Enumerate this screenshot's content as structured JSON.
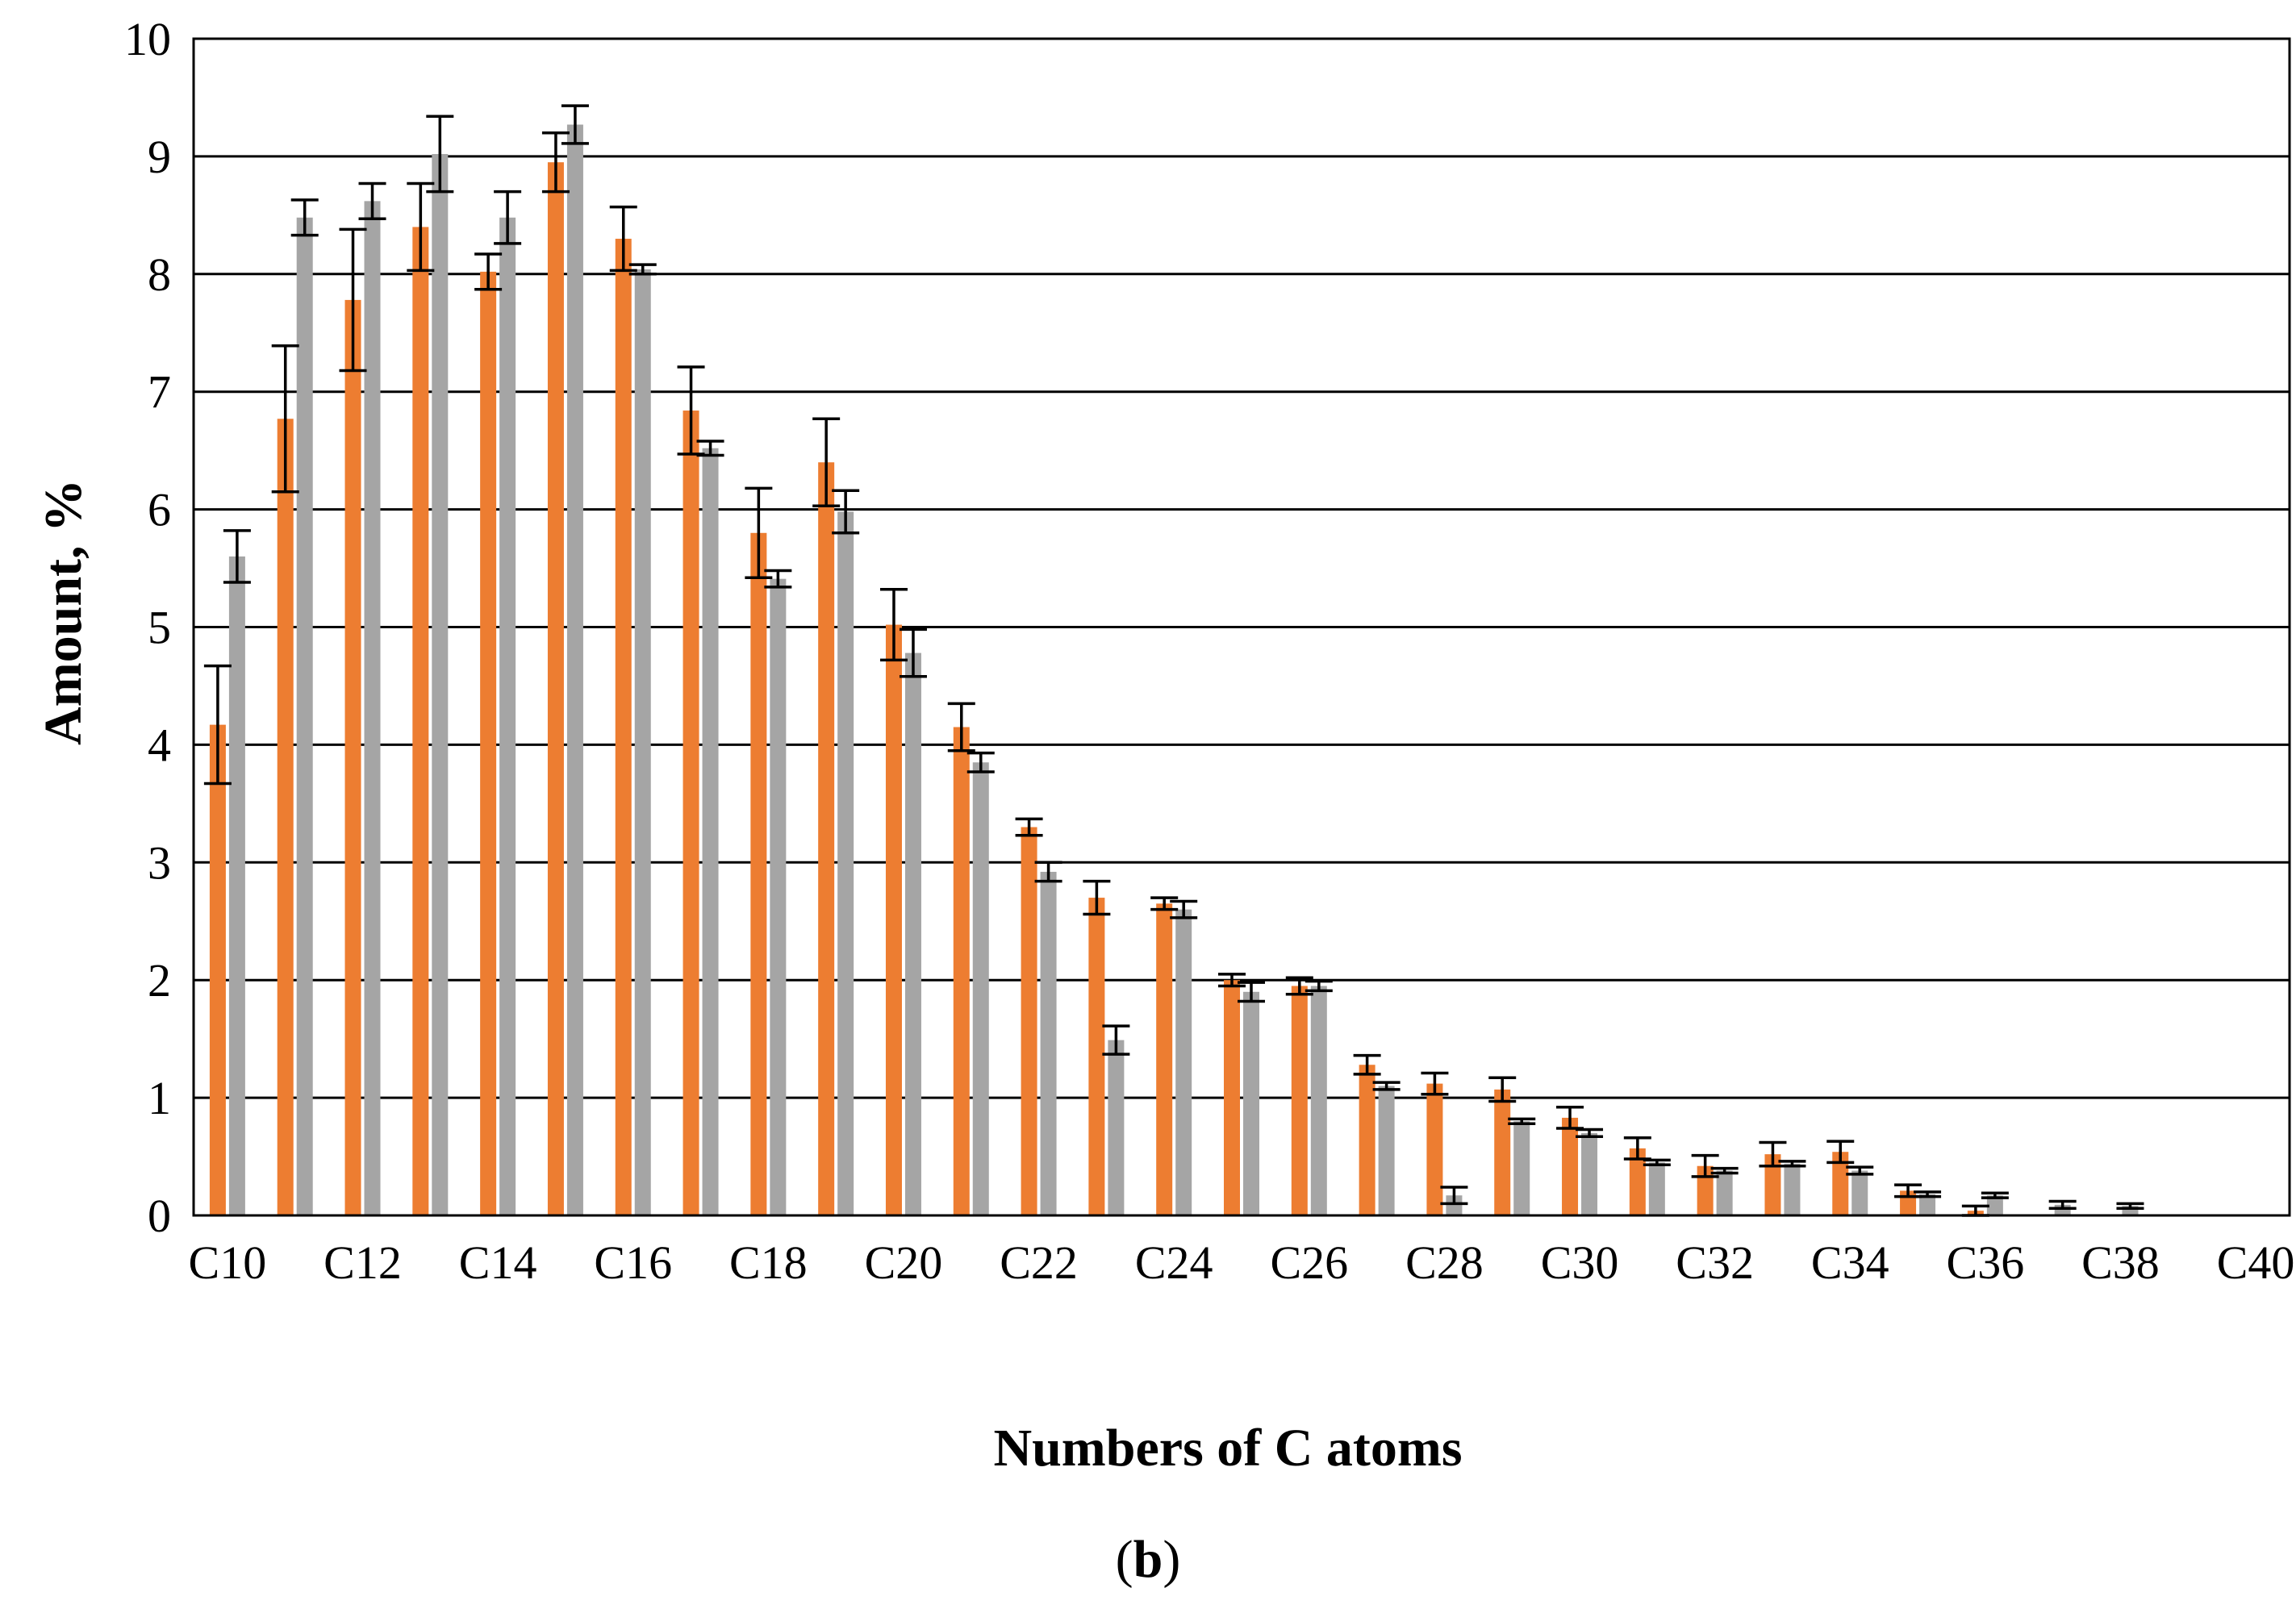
{
  "chart_data": {
    "type": "bar",
    "xlabel": "Numbers of C atoms",
    "ylabel": "Amount, %",
    "panel_label": {
      "open": "(",
      "letter": "b",
      "close": ")"
    },
    "ylim": [
      0,
      10
    ],
    "yticks": [
      "0",
      "1",
      "2",
      "3",
      "4",
      "5",
      "6",
      "7",
      "8",
      "9",
      "10"
    ],
    "grid": true,
    "legend": "none",
    "categories": [
      "C10",
      "C11",
      "C12",
      "C13",
      "C14",
      "C15",
      "C16",
      "C17",
      "C18",
      "C19",
      "C20",
      "C21",
      "C22",
      "C23",
      "C24",
      "C25",
      "C26",
      "C27",
      "C28",
      "C29",
      "C30",
      "C31",
      "C32",
      "C33",
      "C34",
      "C35",
      "C36",
      "C37",
      "C38",
      "C39",
      "C40"
    ],
    "x_tick_labels": [
      "C10",
      "C12",
      "C14",
      "C16",
      "C18",
      "C20",
      "C22",
      "C24",
      "C26",
      "C28",
      "C30",
      "C32",
      "C34",
      "C36",
      "C38",
      "C40"
    ],
    "series": [
      {
        "color": "#ED7D31",
        "values": [
          4.17,
          6.77,
          7.78,
          8.4,
          8.02,
          8.95,
          8.3,
          6.84,
          5.8,
          6.4,
          5.02,
          4.15,
          3.3,
          2.7,
          2.65,
          2.0,
          1.95,
          1.28,
          1.12,
          1.07,
          0.83,
          0.57,
          0.42,
          0.52,
          0.54,
          0.21,
          0.04,
          0.0,
          0.0,
          0.0,
          0.0
        ],
        "errors": [
          0.5,
          0.62,
          0.6,
          0.37,
          0.15,
          0.25,
          0.27,
          0.37,
          0.38,
          0.37,
          0.3,
          0.2,
          0.07,
          0.14,
          0.05,
          0.05,
          0.07,
          0.08,
          0.09,
          0.1,
          0.09,
          0.09,
          0.09,
          0.1,
          0.09,
          0.05,
          0.04,
          0.0,
          0.0,
          0.0,
          0.0
        ]
      },
      {
        "color": "#A5A5A5",
        "values": [
          5.6,
          8.48,
          8.62,
          9.02,
          8.48,
          9.27,
          8.04,
          6.52,
          5.41,
          5.98,
          4.78,
          3.85,
          2.92,
          1.49,
          2.6,
          1.9,
          1.95,
          1.1,
          0.17,
          0.8,
          0.7,
          0.45,
          0.38,
          0.44,
          0.38,
          0.18,
          0.17,
          0.09,
          0.08,
          0.0,
          0.0
        ],
        "errors": [
          0.22,
          0.15,
          0.15,
          0.32,
          0.22,
          0.16,
          0.04,
          0.06,
          0.07,
          0.18,
          0.2,
          0.08,
          0.08,
          0.12,
          0.07,
          0.08,
          0.04,
          0.03,
          0.07,
          0.02,
          0.03,
          0.02,
          0.02,
          0.02,
          0.03,
          0.02,
          0.02,
          0.03,
          0.02,
          0.0,
          0.0
        ]
      }
    ]
  }
}
